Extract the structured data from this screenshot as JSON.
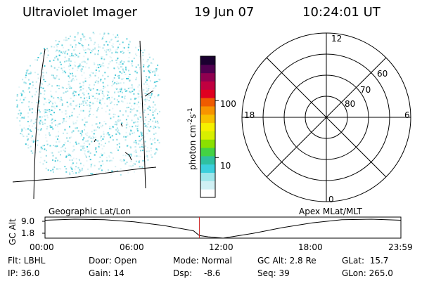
{
  "header": {
    "title": "Ultraviolet Imager",
    "date": "19 Jun 07",
    "time": "10:24:01 UT"
  },
  "colorbar": {
    "label": "photon cm",
    "label_sup1": "-2",
    "label_mid": "s",
    "label_sup2": "-1",
    "ticks": [
      {
        "value": 100,
        "label": "100"
      },
      {
        "value": 10,
        "label": "10"
      }
    ],
    "scale": "log",
    "range": [
      2,
      600
    ],
    "colors": [
      "#ffffff",
      "#d0f0f4",
      "#9fe6ea",
      "#3ccfdc",
      "#2fc0a0",
      "#44d244",
      "#8be000",
      "#d8ef00",
      "#f5f000",
      "#f7c000",
      "#f79400",
      "#ef5b00",
      "#e00020",
      "#c00040",
      "#900050",
      "#500050",
      "#1a0030"
    ]
  },
  "polar": {
    "mlt_labels": [
      "12",
      "18",
      "6",
      "0"
    ],
    "lat_labels": [
      "60",
      "70",
      "80"
    ]
  },
  "orbit": {
    "left_label": "Geographic Lat/Lon",
    "right_label": "Apex MLat/MLT",
    "y_title": "GC Alt",
    "y_ticks": [
      "9.0",
      "1.8"
    ],
    "x_ticks": [
      "00:00",
      "06:00",
      "12:00",
      "18:00",
      "23:59"
    ]
  },
  "chart_data": [
    {
      "type": "line",
      "title": "",
      "xlabel": "",
      "ylabel": "GC Alt",
      "x": [
        "00:00",
        "02:00",
        "04:00",
        "06:00",
        "08:00",
        "10:00",
        "10:24",
        "11:00",
        "12:00",
        "14:00",
        "16:00",
        "18:00",
        "20:00",
        "22:00",
        "23:59"
      ],
      "series": [
        {
          "values": [
            8.6,
            9.0,
            8.8,
            8.0,
            6.6,
            4.6,
            2.8,
            2.3,
            1.8,
            3.6,
            5.8,
            7.6,
            8.8,
            9.0,
            8.6
          ]
        }
      ],
      "ylim": [
        1.8,
        9.0
      ],
      "current_time": "10:24"
    }
  ],
  "status": {
    "flt": "Flt: LBHL",
    "door": "Door: Open",
    "mode": "Mode: Normal",
    "gc_alt": "GC Alt: 2.8 Re",
    "glat": "GLat:  15.7",
    "ip": "IP: 36.0",
    "gain": "Gain: 14",
    "dsp_label": "Dsp:",
    "dsp_value": "-8.6",
    "seq": "Seq: 39",
    "glon": "GLon: 265.0"
  }
}
